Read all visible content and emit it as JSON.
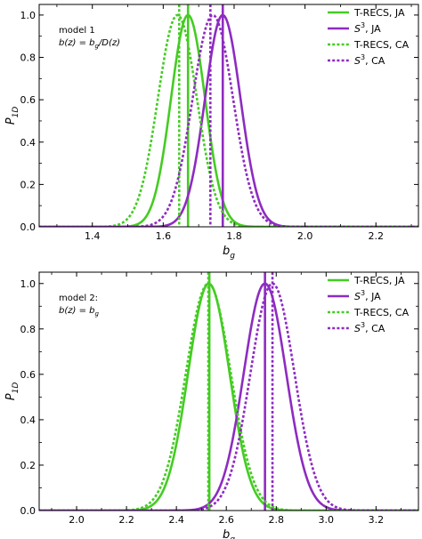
{
  "colors": {
    "trecs": "#44cc22",
    "s3": "#8e2bc1",
    "axis": "#000000"
  },
  "chart_data": [
    {
      "type": "line",
      "panel": "top",
      "annotation": [
        "model 1",
        "b(z) = b_g/D(z)"
      ],
      "xlabel": "b_g",
      "ylabel": "P_1D",
      "xlim": [
        1.25,
        2.32
      ],
      "ylim": [
        0,
        1.05
      ],
      "xticks": [
        "1.4",
        "1.6",
        "1.8",
        "2.0",
        "2.2"
      ],
      "xtick_values": [
        1.4,
        1.6,
        1.8,
        2.0,
        2.2
      ],
      "yticks": [
        "0.0",
        "0.2",
        "0.4",
        "0.6",
        "0.8",
        "1.0"
      ],
      "ytick_values": [
        0,
        0.2,
        0.4,
        0.6,
        0.8,
        1.0
      ],
      "legend_position": "top-right",
      "series": [
        {
          "name": "T-RECS, JA",
          "style": "solid",
          "color_key": "trecs",
          "mean": 1.67,
          "sigma": 0.048,
          "marker_line": 1.67
        },
        {
          "name": "S³, JA",
          "style": "solid",
          "color_key": "s3",
          "mean": 1.768,
          "sigma": 0.05,
          "marker_line": 1.768
        },
        {
          "name": "T-RECS, CA",
          "style": "dotted",
          "color_key": "trecs",
          "mean": 1.64,
          "sigma": 0.055,
          "marker_line": 1.645
        },
        {
          "name": "S³, CA",
          "style": "dotted",
          "color_key": "s3",
          "mean": 1.74,
          "sigma": 0.057,
          "marker_line": 1.733
        }
      ]
    },
    {
      "type": "line",
      "panel": "bottom",
      "annotation": [
        "model 2:",
        "b(z) = b_g"
      ],
      "xlabel": "b_g",
      "ylabel": "P_1D",
      "xlim": [
        1.85,
        3.37
      ],
      "ylim": [
        0,
        1.05
      ],
      "xticks": [
        "2.0",
        "2.2",
        "2.4",
        "2.6",
        "2.8",
        "3.0",
        "3.2"
      ],
      "xtick_values": [
        2.0,
        2.2,
        2.4,
        2.6,
        2.8,
        3.0,
        3.2
      ],
      "yticks": [
        "0.0",
        "0.2",
        "0.4",
        "0.6",
        "0.8",
        "1.0"
      ],
      "ytick_values": [
        0,
        0.2,
        0.4,
        0.6,
        0.8,
        1.0
      ],
      "legend_position": "top-right",
      "series": [
        {
          "name": "T-RECS, JA",
          "style": "solid",
          "color_key": "trecs",
          "mean": 2.53,
          "sigma": 0.083,
          "marker_line": 2.532
        },
        {
          "name": "S³, JA",
          "style": "solid",
          "color_key": "s3",
          "mean": 2.755,
          "sigma": 0.085,
          "marker_line": 2.755
        },
        {
          "name": "T-RECS, CA",
          "style": "dotted",
          "color_key": "trecs",
          "mean": 2.528,
          "sigma": 0.09,
          "marker_line": 2.528
        },
        {
          "name": "S³, CA",
          "style": "dotted",
          "color_key": "s3",
          "mean": 2.785,
          "sigma": 0.088,
          "marker_line": 2.785
        }
      ]
    }
  ]
}
